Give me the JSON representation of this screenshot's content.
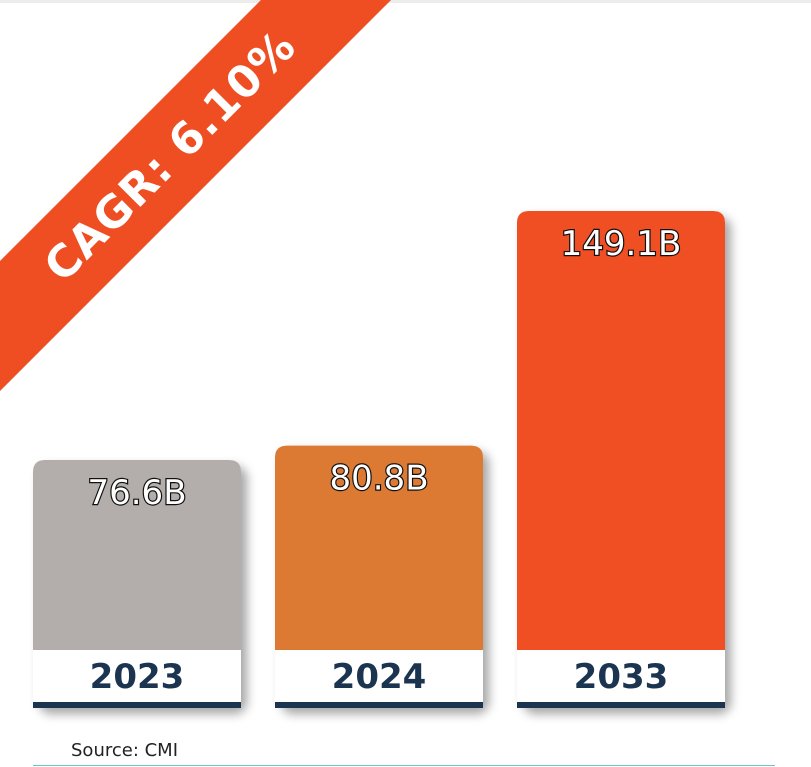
{
  "cagr_label": "CAGR: 6.10%",
  "source": "Source: CMI",
  "colors": {
    "ribbon": "#ef4e23",
    "year_text": "#1b3450",
    "baseline": "#1b3450",
    "year_box": "#ffffff"
  },
  "chart_data": {
    "type": "bar",
    "categories": [
      "2023",
      "2024",
      "2033"
    ],
    "values": [
      76.6,
      80.8,
      149.1
    ],
    "value_labels": [
      "76.6B",
      "80.8B",
      "149.1B"
    ],
    "bar_colors": [
      "#b3aeab",
      "#dc7a34",
      "#f04e23"
    ],
    "title": "",
    "xlabel": "",
    "ylabel": "",
    "grid": false,
    "legend": "none"
  }
}
